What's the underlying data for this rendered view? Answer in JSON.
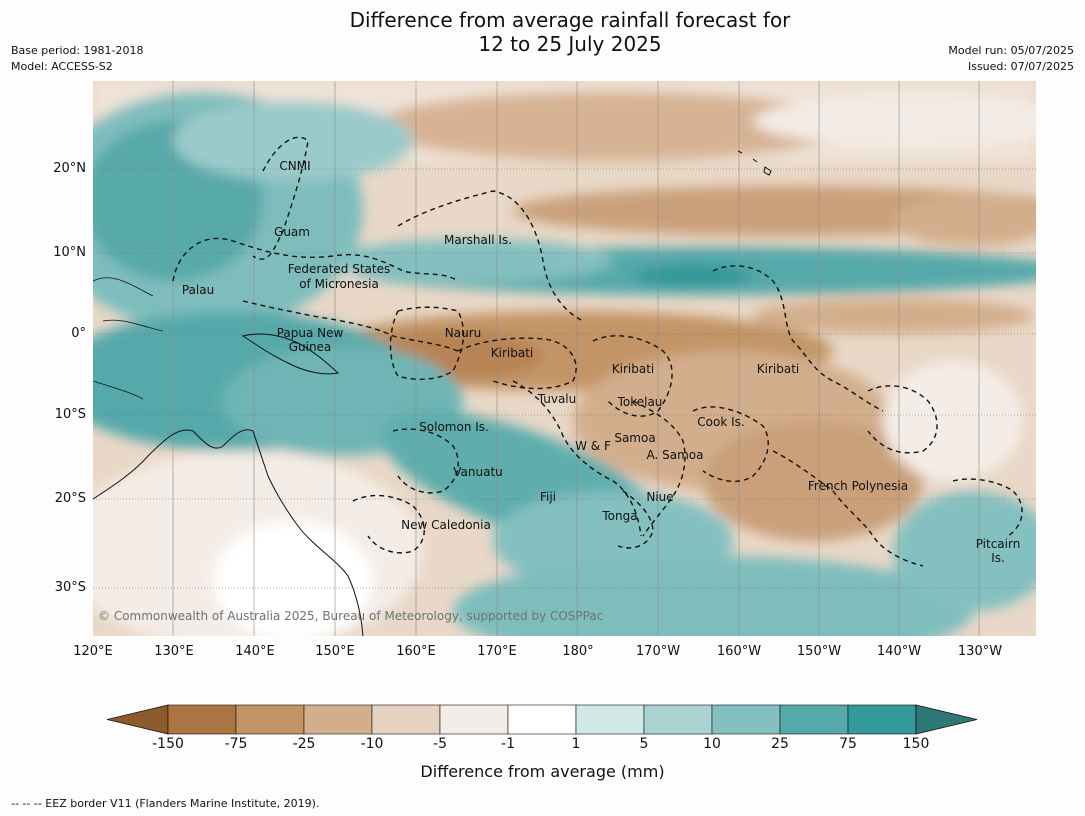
{
  "title": {
    "line1": "Difference from average rainfall forecast for",
    "line2": "12 to 25 July 2025"
  },
  "meta": {
    "base_period": "Base period: 1981-2018",
    "model": "Model: ACCESS-S2",
    "model_run": "Model run: 05/07/2025",
    "issued": "Issued: 07/07/2025"
  },
  "map": {
    "lon_labels": [
      "120°E",
      "130°E",
      "140°E",
      "150°E",
      "160°E",
      "170°E",
      "180°",
      "170°W",
      "160°W",
      "150°W",
      "140°W",
      "130°W"
    ],
    "lat_labels": [
      "20°N",
      "10°N",
      "0°",
      "10°S",
      "20°S",
      "30°S"
    ],
    "copyright": "© Commonwealth of Australia 2025, Bureau of Meteorology, supported by COSPPac",
    "regions": [
      {
        "id": "cnmi",
        "text": "CNMI"
      },
      {
        "id": "guam",
        "text": "Guam"
      },
      {
        "id": "marshall",
        "text": "Marshall Is."
      },
      {
        "id": "fsm1",
        "text": "Federated States"
      },
      {
        "id": "fsm2",
        "text": "of Micronesia"
      },
      {
        "id": "palau",
        "text": "Palau"
      },
      {
        "id": "png1",
        "text": "Papua New"
      },
      {
        "id": "png2",
        "text": "Guinea"
      },
      {
        "id": "nauru",
        "text": "Nauru"
      },
      {
        "id": "kiribati1",
        "text": "Kiribati"
      },
      {
        "id": "kiribati2",
        "text": "Kiribati"
      },
      {
        "id": "kiribati3",
        "text": "Kiribati"
      },
      {
        "id": "tuvalu",
        "text": "Tuvalu"
      },
      {
        "id": "tokelau",
        "text": "Tokelau"
      },
      {
        "id": "cook",
        "text": "Cook Is."
      },
      {
        "id": "solomon",
        "text": "Solomon Is."
      },
      {
        "id": "samoa",
        "text": "Samoa"
      },
      {
        "id": "wf",
        "text": "W & F"
      },
      {
        "id": "asamoa",
        "text": "A. Samoa"
      },
      {
        "id": "vanuatu",
        "text": "Vanuatu"
      },
      {
        "id": "fiji",
        "text": "Fiji"
      },
      {
        "id": "niue",
        "text": "Niue"
      },
      {
        "id": "tonga",
        "text": "Tonga"
      },
      {
        "id": "frpoly",
        "text": "French Polynesia"
      },
      {
        "id": "newcal",
        "text": "New Caledonia"
      },
      {
        "id": "pitcairn1",
        "text": "Pitcairn"
      },
      {
        "id": "pitcairn2",
        "text": "Is."
      }
    ]
  },
  "colorbar": {
    "ticks": [
      "-150",
      "-75",
      "-25",
      "-10",
      "-5",
      "-1",
      "1",
      "5",
      "10",
      "25",
      "75",
      "150"
    ],
    "colors": [
      "#8c5a2b",
      "#ab7541",
      "#c39566",
      "#d3ae8c",
      "#e6d2c0",
      "#f4ece6",
      "#ffffff",
      "#d2e8e7",
      "#abd3d3",
      "#84c0c0",
      "#56a9aa",
      "#33999a",
      "#2e7876"
    ],
    "label": "Difference from average (mm)"
  },
  "footer": "--  --  -- EEZ border V11 (Flanders Marine Institute, 2019)."
}
